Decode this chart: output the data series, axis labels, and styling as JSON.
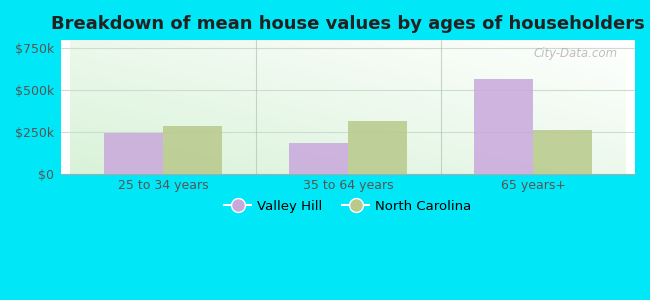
{
  "title": "Breakdown of mean house values by ages of householders",
  "categories": [
    "25 to 34 years",
    "35 to 64 years",
    "65 years+"
  ],
  "valley_hill": [
    245000,
    185000,
    570000
  ],
  "north_carolina": [
    288000,
    318000,
    265000
  ],
  "valley_hill_color": "#c9a8dc",
  "north_carolina_color": "#b8c98a",
  "ylim": [
    0,
    800000
  ],
  "yticks": [
    0,
    250000,
    500000,
    750000
  ],
  "ytick_labels": [
    "$0",
    "$250k",
    "$500k",
    "$750k"
  ],
  "legend_valley_hill": "Valley Hill",
  "legend_north_carolina": "North Carolina",
  "bg_color_outer": "#00e8f8",
  "bar_width": 0.32,
  "title_fontsize": 13,
  "watermark": "City-Data.com"
}
